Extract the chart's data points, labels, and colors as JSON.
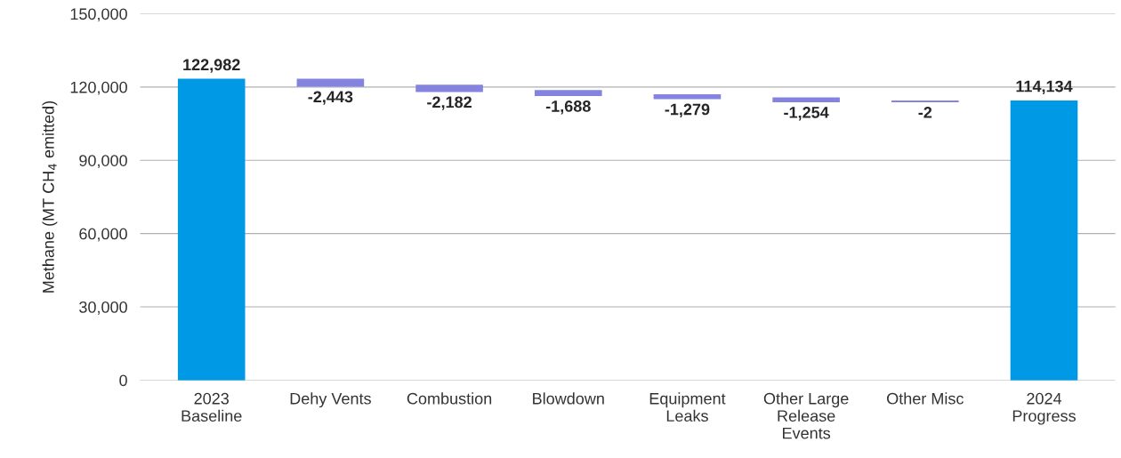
{
  "chart_data": {
    "type": "bar",
    "ylabel": "Methane (MT CH$_{4}$ emitted)",
    "categories": [
      "2023\nBaseline",
      "Dehy Vents",
      "Combustion",
      "Blowdown",
      "Equipment\nLeaks",
      "Other Large\nRelease\nEvents",
      "Other Misc",
      "2024\nProgress"
    ],
    "values": [
      122982,
      -2443,
      -2182,
      -1688,
      -1279,
      -1254,
      -2,
      114134
    ],
    "base": [
      0,
      122982,
      120539,
      118357,
      116669,
      115390,
      114136,
      0
    ],
    "colors": [
      "#0099e6",
      "#8484e0",
      "#8484e0",
      "#8484e0",
      "#8484e0",
      "#8484e0",
      "#8484e0",
      "#0099e6"
    ],
    "value_labels": [
      "122,982",
      "-2,443",
      "-2,182",
      "-1,688",
      "-1,279",
      "-1,254",
      "-2",
      "114,134"
    ],
    "ylim": [
      0,
      150000
    ],
    "yticks": [
      {
        "value": 0,
        "label": "0"
      },
      {
        "value": 30000,
        "label": "30,000"
      },
      {
        "value": 60000,
        "label": "60,000"
      },
      {
        "value": 90000,
        "label": "90,000"
      },
      {
        "value": 120000,
        "label": "120,000"
      },
      {
        "value": 150000,
        "label": "150,000"
      }
    ],
    "grid": "y"
  }
}
